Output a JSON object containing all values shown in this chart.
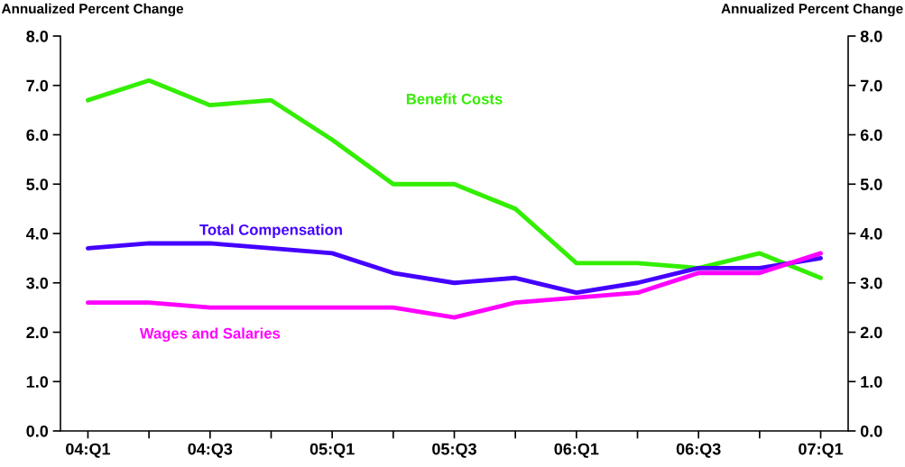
{
  "chart_data": {
    "type": "line",
    "ylabel": "Annualized Percent Change",
    "y2label": "Annualized Percent Change",
    "categories": [
      "04:Q1",
      null,
      "04:Q3",
      null,
      "05:Q1",
      null,
      "05:Q3",
      null,
      "06:Q1",
      null,
      "06:Q3",
      null,
      "07:Q1"
    ],
    "series": [
      {
        "name": "Benefit Costs",
        "color": "#33ee00",
        "values": [
          6.7,
          7.1,
          6.6,
          6.7,
          5.9,
          5.0,
          5.0,
          4.5,
          3.4,
          3.4,
          3.3,
          3.6,
          3.1
        ]
      },
      {
        "name": "Total Compensation",
        "color": "#4400ff",
        "values": [
          3.7,
          3.8,
          3.8,
          3.7,
          3.6,
          3.2,
          3.0,
          3.1,
          2.8,
          3.0,
          3.3,
          3.3,
          3.5
        ]
      },
      {
        "name": "Wages and Salaries",
        "color": "#ff00ff",
        "values": [
          2.6,
          2.6,
          2.5,
          2.5,
          2.5,
          2.5,
          2.3,
          2.6,
          2.7,
          2.8,
          3.2,
          3.2,
          3.6
        ]
      }
    ],
    "ylim": [
      0,
      8
    ],
    "yticks": [
      {
        "value": 0,
        "label": "0.0"
      },
      {
        "value": 1,
        "label": "1.0"
      },
      {
        "value": 2,
        "label": "2.0"
      },
      {
        "value": 3,
        "label": "3.0"
      },
      {
        "value": 4,
        "label": "4.0"
      },
      {
        "value": 5,
        "label": "5.0"
      },
      {
        "value": 6,
        "label": "6.0"
      },
      {
        "value": 7,
        "label": "7.0"
      },
      {
        "value": 8,
        "label": "8.0"
      }
    ],
    "y2lim": [
      0,
      8
    ],
    "y2ticks": [
      {
        "value": 0,
        "label": "0.0"
      },
      {
        "value": 1,
        "label": "1.0"
      },
      {
        "value": 2,
        "label": "2.0"
      },
      {
        "value": 3,
        "label": "3.0"
      },
      {
        "value": 4,
        "label": "4.0"
      },
      {
        "value": 5,
        "label": "5.0"
      },
      {
        "value": 6,
        "label": "6.0"
      },
      {
        "value": 7,
        "label": "7.0"
      },
      {
        "value": 8,
        "label": "8.0"
      }
    ],
    "grid": false,
    "legend": false,
    "marker": "none",
    "line_style": "solid"
  }
}
